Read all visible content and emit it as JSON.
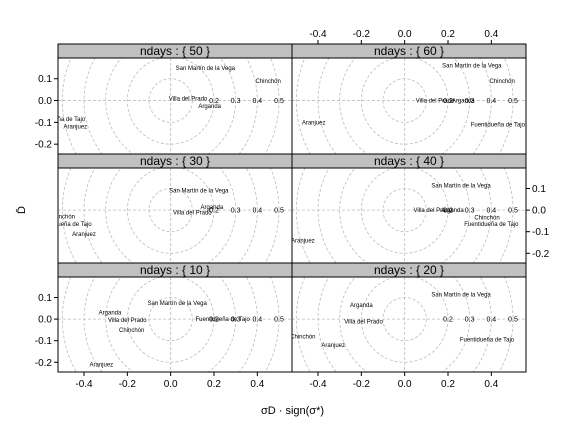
{
  "chart_data": {
    "type": "scatter",
    "layout": "lattice 2 columns x 3 rows",
    "xlabel": "σD · sign(σ*)",
    "ylabel": "D̄",
    "xlim": [
      -0.52,
      0.56
    ],
    "ylim": [
      -0.245,
      0.195
    ],
    "x_ticks": [
      -0.4,
      -0.2,
      0.0,
      0.2,
      0.4
    ],
    "y_ticks": [
      -0.2,
      -0.1,
      0.0,
      0.1
    ],
    "rings": [
      0.1,
      0.2,
      0.3,
      0.4,
      0.5
    ],
    "ring_labels": [
      "0.2",
      "0.3",
      "0.4",
      "0.5"
    ],
    "grid": true,
    "colors": {
      "strip": "#c0c0c0",
      "grid": "#bdbdbd",
      "axis": "#000000"
    },
    "panels": [
      {
        "title": "ndays : { 50 }",
        "points": [
          {
            "label": "San Martín de la Vega",
            "x": 0.16,
            "y": 0.15
          },
          {
            "label": "Chinchón",
            "x": 0.45,
            "y": 0.09
          },
          {
            "label": "Villa del Prado",
            "x": 0.08,
            "y": 0.01
          },
          {
            "label": "Arganda",
            "x": 0.18,
            "y": -0.025
          },
          {
            "label": "Fuentidueña de Tajo",
            "x": -0.52,
            "y": -0.085
          },
          {
            "label": "Aranjuez",
            "x": -0.44,
            "y": -0.12
          }
        ]
      },
      {
        "title": "ndays : { 60 }",
        "points": [
          {
            "label": "San Martín de la Vega",
            "x": 0.31,
            "y": 0.16
          },
          {
            "label": "Chinchón",
            "x": 0.45,
            "y": 0.09
          },
          {
            "label": "Villa del Prado",
            "x": 0.14,
            "y": 0.0
          },
          {
            "label": "Arganda",
            "x": 0.27,
            "y": 0.0
          },
          {
            "label": "Aranjuez",
            "x": -0.42,
            "y": -0.1
          },
          {
            "label": "Fuentidueña de Tajo",
            "x": 0.43,
            "y": -0.11
          }
        ]
      },
      {
        "title": "ndays : { 30 }",
        "points": [
          {
            "label": "San Martín de la Vega",
            "x": 0.13,
            "y": 0.09
          },
          {
            "label": "Arganda",
            "x": 0.19,
            "y": 0.015
          },
          {
            "label": "Villa del Prado",
            "x": 0.1,
            "y": -0.01
          },
          {
            "label": "Chinchón",
            "x": -0.5,
            "y": -0.03
          },
          {
            "label": "Fuentidueña de Tajo",
            "x": -0.49,
            "y": -0.065
          },
          {
            "label": "Aranjuez",
            "x": -0.4,
            "y": -0.11
          }
        ]
      },
      {
        "title": "ndays : { 40 }",
        "points": [
          {
            "label": "San Martín de la Vega",
            "x": 0.26,
            "y": 0.115
          },
          {
            "label": "Villa del Prado",
            "x": 0.13,
            "y": 0.0
          },
          {
            "label": "Arganda",
            "x": 0.22,
            "y": 0.0
          },
          {
            "label": "Chinchón",
            "x": 0.38,
            "y": -0.035
          },
          {
            "label": "Fuentidueña de Tajo",
            "x": 0.4,
            "y": -0.065
          },
          {
            "label": "Aranjuez",
            "x": -0.47,
            "y": -0.14
          }
        ]
      },
      {
        "title": "ndays : { 10 }",
        "points": [
          {
            "label": "San Martín de la Vega",
            "x": 0.03,
            "y": 0.075
          },
          {
            "label": "Arganda",
            "x": -0.28,
            "y": 0.03
          },
          {
            "label": "Villa del Prado",
            "x": -0.2,
            "y": -0.005
          },
          {
            "label": "Chinchón",
            "x": -0.18,
            "y": -0.05
          },
          {
            "label": "Fuentidueña de Tajo",
            "x": 0.24,
            "y": 0.0
          },
          {
            "label": "Aranjuez",
            "x": -0.32,
            "y": -0.21
          }
        ]
      },
      {
        "title": "ndays : { 20 }",
        "points": [
          {
            "label": "San Martín de la Vega",
            "x": 0.26,
            "y": 0.115
          },
          {
            "label": "Arganda",
            "x": -0.2,
            "y": 0.065
          },
          {
            "label": "Villa del Prado",
            "x": -0.19,
            "y": -0.01
          },
          {
            "label": "Chinchón",
            "x": -0.47,
            "y": -0.08
          },
          {
            "label": "Aranjuez",
            "x": -0.33,
            "y": -0.12
          },
          {
            "label": "Fuentidueña de Tajo",
            "x": 0.38,
            "y": -0.095
          }
        ]
      }
    ]
  }
}
